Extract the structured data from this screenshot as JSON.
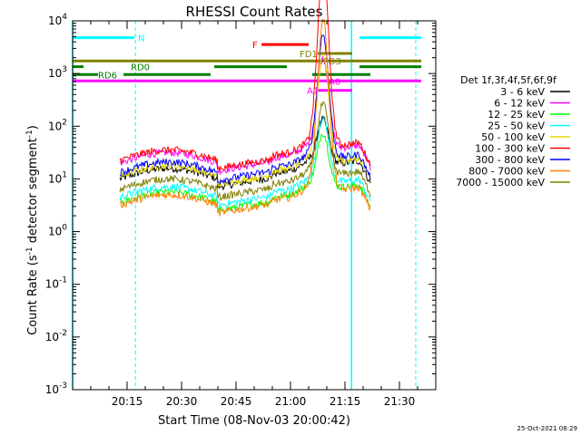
{
  "chart_data": {
    "type": "line",
    "title": "RHESSI Count Rates",
    "xlabel": "Start Time (08-Nov-03 20:00:42)",
    "ylabel_main": "Count Rate (s",
    "ylabel_sup1": "-1",
    "ylabel_mid": " detector segment",
    "ylabel_sup2": "-1",
    "ylabel_end": ")",
    "xlim_min": [
      0,
      100
    ],
    "ylog": true,
    "ylim_exp": [
      -3,
      4
    ],
    "ytick_labels": [
      {
        "base": "10",
        "exp": "-3",
        "value": -3
      },
      {
        "base": "10",
        "exp": "-2",
        "value": -2
      },
      {
        "base": "10",
        "exp": "-1",
        "value": -1
      },
      {
        "base": "10",
        "exp": "0",
        "value": 0
      },
      {
        "base": "10",
        "exp": "1",
        "value": 1
      },
      {
        "base": "10",
        "exp": "2",
        "value": 2
      },
      {
        "base": "10",
        "exp": "3",
        "value": 3
      },
      {
        "base": "10",
        "exp": "4",
        "value": 4
      }
    ],
    "xticks": [
      {
        "label": "20:15",
        "min": 15
      },
      {
        "label": "20:30",
        "min": 30
      },
      {
        "label": "20:45",
        "min": 45
      },
      {
        "label": "21:00",
        "min": 60
      },
      {
        "label": "21:15",
        "min": 75
      },
      {
        "label": "21:30",
        "min": 90
      }
    ],
    "legend_title": "Det 1f,3f,4f,5f,6f,9f",
    "series": [
      {
        "name": "3 - 6 keV",
        "color": "#000000",
        "base": 1.0,
        "peak": 0.8,
        "flareStart": 53
      },
      {
        "name": "6 - 12 keV",
        "color": "#ff00ff",
        "base": 1.3,
        "peak": 1.7,
        "flareStart": 53
      },
      {
        "name": "12 - 25 keV",
        "color": "#00ff00",
        "base": 0.55,
        "peak": 1.0,
        "flareStart": 60
      },
      {
        "name": "25 - 50 keV",
        "color": "#00ffff",
        "base": 0.65,
        "peak": 1.2,
        "flareStart": 60
      },
      {
        "name": "50 - 100 keV",
        "color": "#e8d800",
        "base": 1.05,
        "peak": 2.0,
        "flareStart": 60
      },
      {
        "name": "100 - 300 keV",
        "color": "#ff0000",
        "base": 1.35,
        "peak": 3.3,
        "flareStart": 60
      },
      {
        "name": "300 - 800 keV",
        "color": "#0000ff",
        "base": 1.12,
        "peak": 2.3,
        "flareStart": 60
      },
      {
        "name": "800 - 7000 keV",
        "color": "#ff8000",
        "base": 0.5,
        "peak": 3.2,
        "flareStart": 60
      },
      {
        "name": "7000 - 15000 keV",
        "color": "#808000",
        "base": 0.8,
        "peak": 1.3,
        "flareStart": 60
      }
    ],
    "flags": [
      {
        "label": "N",
        "color": "#00ffff",
        "labelMin": 18,
        "segments": [
          [
            0,
            17
          ],
          [
            79,
            96
          ]
        ],
        "y": 3.68
      },
      {
        "label": "F",
        "color": "#ff0000",
        "labelMin": 49.5,
        "segments": [
          [
            52,
            65
          ]
        ],
        "y": 3.55
      },
      {
        "label": "FD1",
        "color": "#808000",
        "labelMin": 62.5,
        "segments": [
          [
            67.5,
            77
          ]
        ],
        "y": 3.38
      },
      {
        "label": "FD3",
        "color": "#808000",
        "labelMin": 69,
        "segments": [
          [
            0,
            96
          ]
        ],
        "y": 3.24
      },
      {
        "label": "RD0",
        "color": "#008000",
        "labelMin": 16,
        "segments": [
          [
            0,
            3
          ],
          [
            39,
            59
          ],
          [
            79,
            96
          ]
        ],
        "y": 3.13
      },
      {
        "label": "RD6",
        "color": "#008000",
        "labelMin": 7,
        "segments": [
          [
            0,
            7
          ],
          [
            14,
            38
          ],
          [
            66,
            82
          ]
        ],
        "y": 2.98
      },
      {
        "label": "A0",
        "color": "#ff00ff",
        "labelMin": 70.5,
        "segments": [
          [
            0,
            96
          ]
        ],
        "y": 2.86
      },
      {
        "label": "A1",
        "color": "#ff00ff",
        "labelMin": 64.5,
        "segments": [
          [
            67.5,
            77
          ]
        ],
        "y": 2.68
      }
    ],
    "vlines_solid": [
      0,
      76.8
    ],
    "vlines_dashed": [
      17.3,
      94.5
    ],
    "timestamp": "25-Oct-2021 08:29"
  }
}
